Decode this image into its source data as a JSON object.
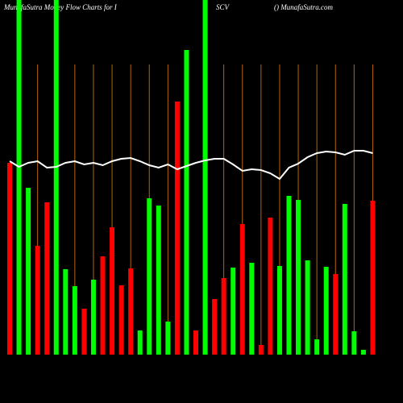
{
  "chart_data": {
    "type": "bar",
    "title": [
      "MunafaSutra  Money Flow  Charts for I",
      "SCV",
      "() MunafaSutra.com"
    ],
    "ylim": [
      0,
      440
    ],
    "values": [
      238,
      440,
      207,
      135,
      189,
      440,
      106,
      85,
      57,
      93,
      122,
      158,
      86,
      107,
      30,
      194,
      185,
      41,
      314,
      378,
      30,
      440,
      69,
      95,
      108,
      162,
      114,
      12,
      170,
      110,
      197,
      192,
      117,
      19,
      109,
      100,
      187,
      29,
      6,
      191
    ],
    "colors": [
      "#ff0000",
      "#00ff00",
      "#00ff00",
      "#ff0000",
      "#ff0000",
      "#00ff00",
      "#00ff00",
      "#00ff00",
      "#ff0000",
      "#00ff00",
      "#ff0000",
      "#ff0000",
      "#ff0000",
      "#ff0000",
      "#00ff00",
      "#00ff00",
      "#00ff00",
      "#00ff00",
      "#ff0000",
      "#00ff00",
      "#ff0000",
      "#00ff00",
      "#ff0000",
      "#ff0000",
      "#00ff00",
      "#ff0000",
      "#00ff00",
      "#ff0000",
      "#ff0000",
      "#00ff00",
      "#00ff00",
      "#00ff00",
      "#00ff00",
      "#00ff00",
      "#00ff00",
      "#ff0000",
      "#00ff00",
      "#00ff00",
      "#00ff00",
      "#ff0000"
    ],
    "line": {
      "color": "#ffffff",
      "values": [
        240,
        233,
        238,
        240,
        232,
        233,
        238,
        240,
        236,
        238,
        235,
        240,
        243,
        244,
        240,
        235,
        232,
        236,
        230,
        234,
        238,
        241,
        243,
        243,
        236,
        228,
        230,
        229,
        225,
        218,
        232,
        237,
        245,
        250,
        252,
        251,
        248,
        253,
        253,
        250
      ]
    }
  }
}
